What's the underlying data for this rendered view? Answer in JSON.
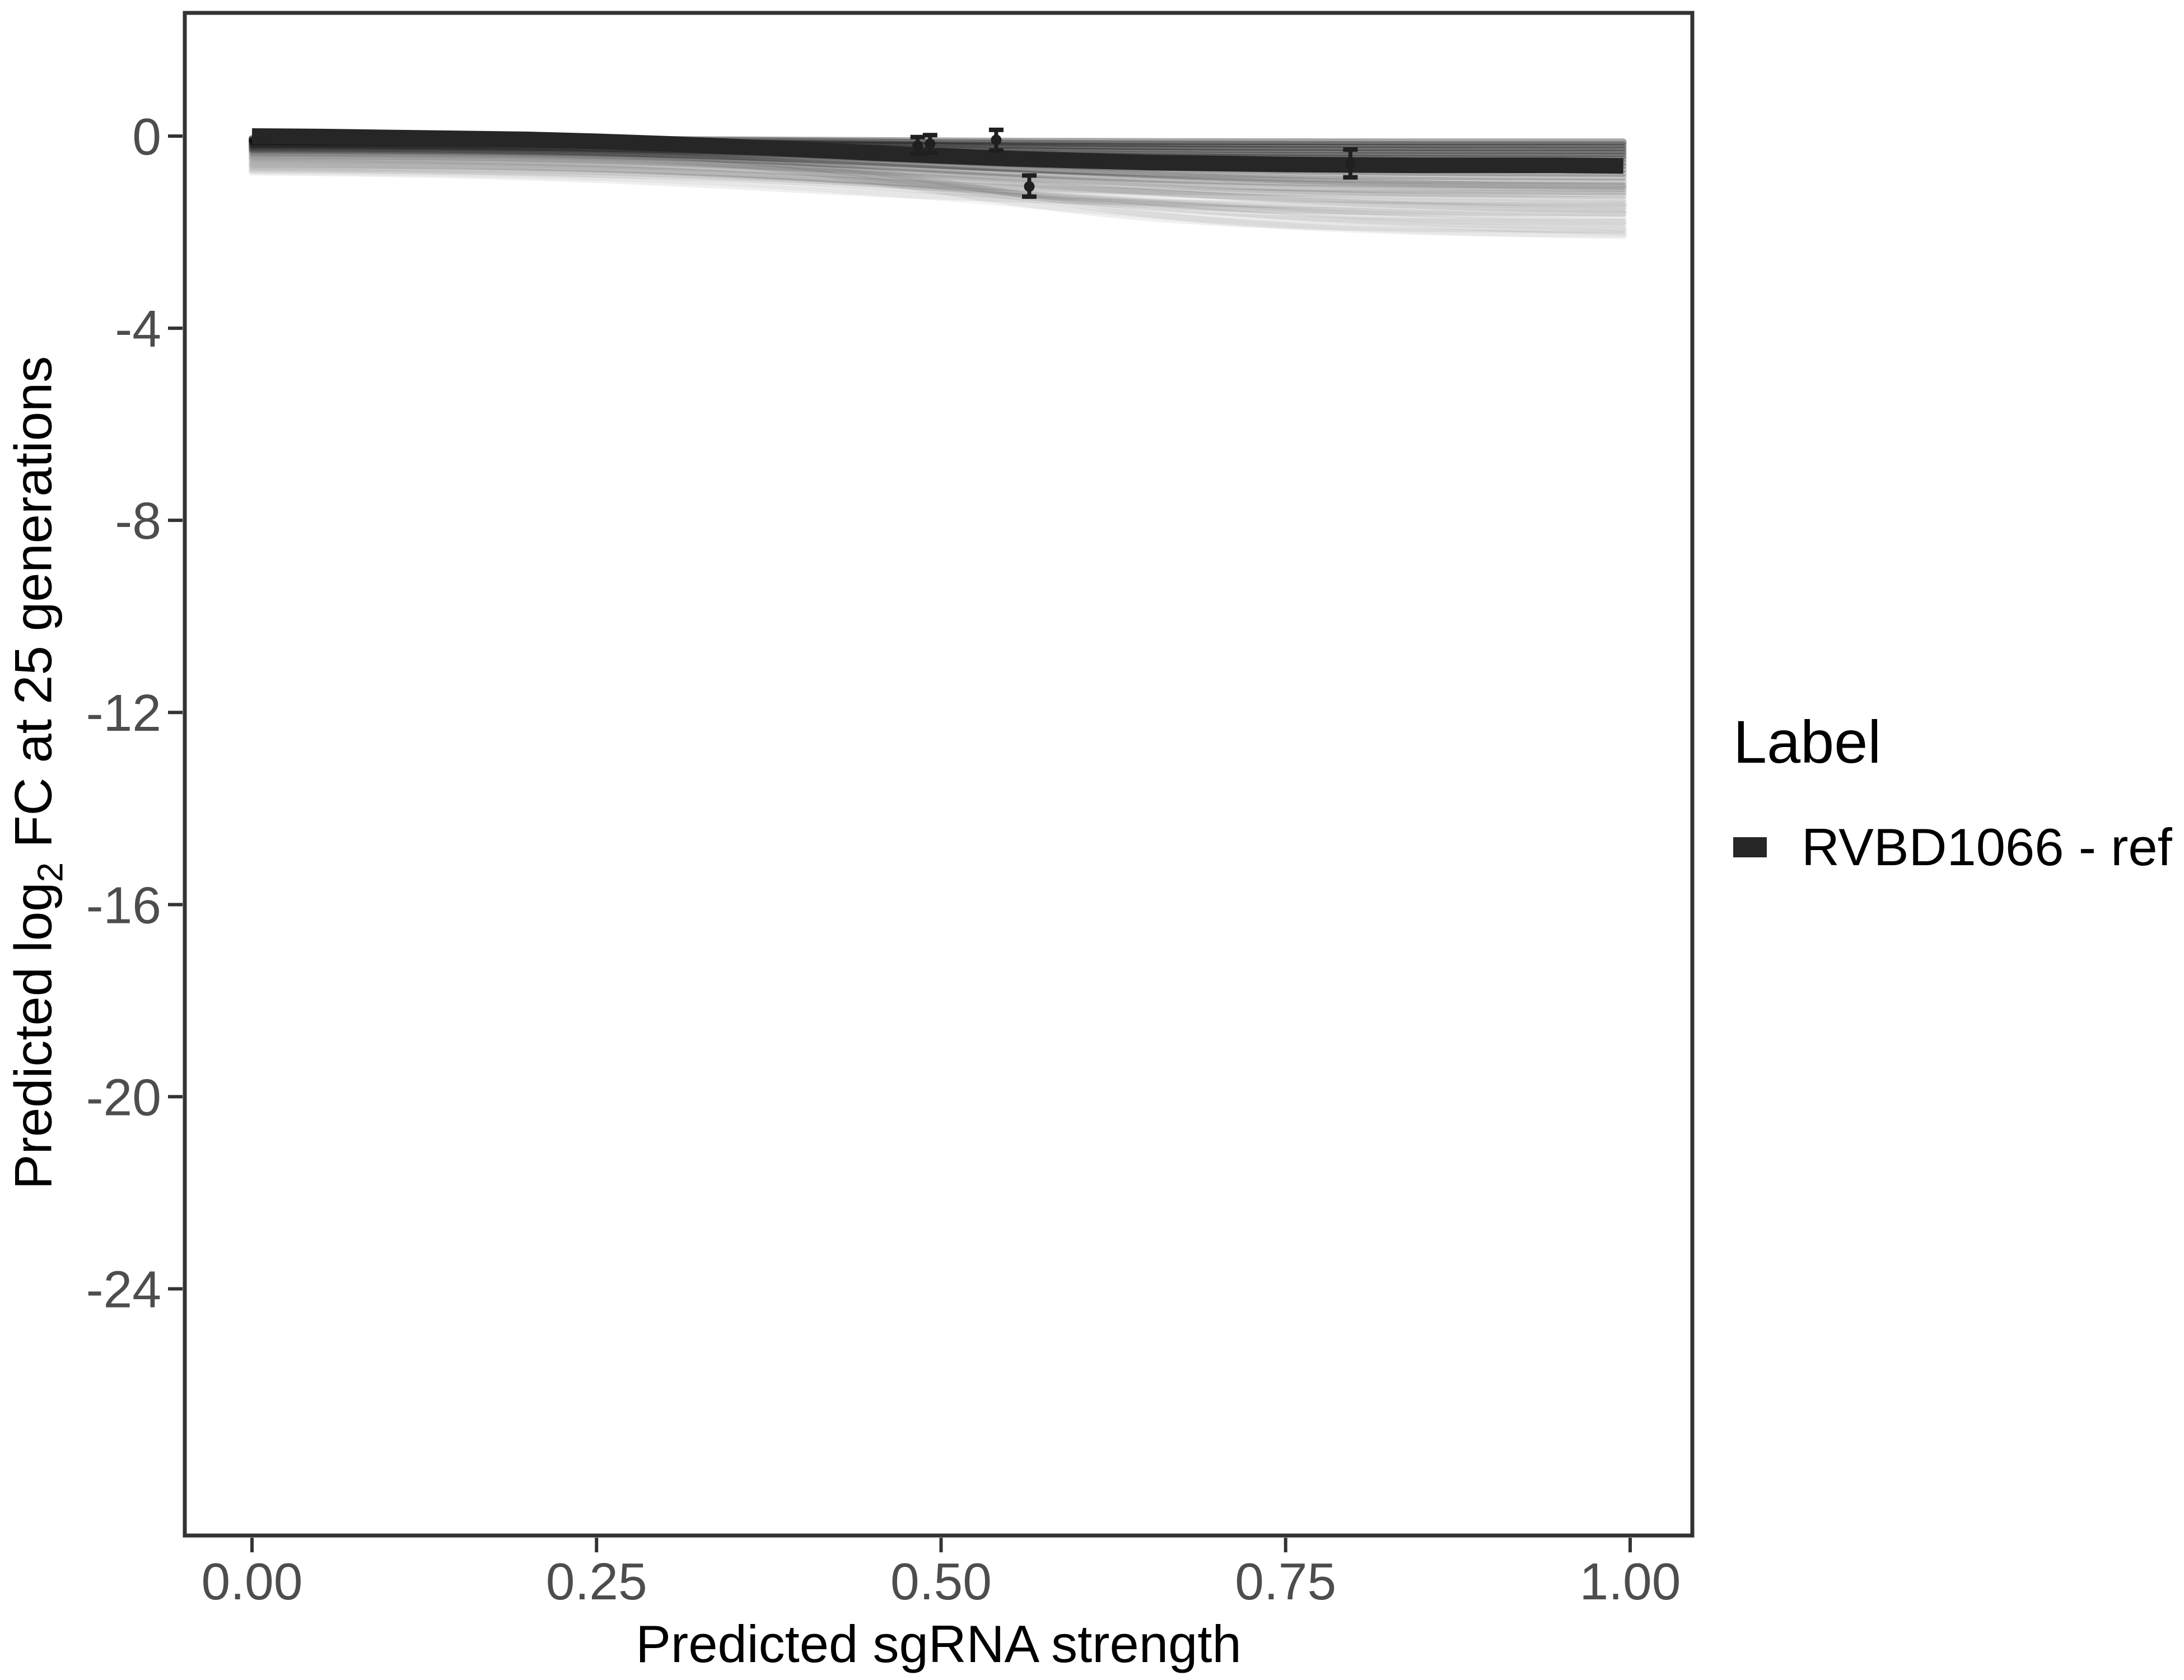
{
  "figure": {
    "background": "#ffffff"
  },
  "style_colors": {
    "panel_border": "#333333",
    "tick_mark": "#333333",
    "tick_label": "#4d4d4d",
    "axis_title": "#000000",
    "ref_line": "#262626",
    "point_and_errorbar": "#1f1f1f",
    "ensemble_line": "#000000"
  },
  "chart_data": {
    "type": "line",
    "title": "",
    "xlabel": "Predicted sgRNA strength",
    "ylabel_parts": {
      "pre": "Predicted  log",
      "sub": "2",
      "post": " FC at 25 generations"
    },
    "x_axis": {
      "tick_labels": [
        "0.00",
        "0.25",
        "0.50",
        "0.75",
        "1.00"
      ],
      "tick_values": [
        0,
        0.25,
        0.5,
        0.75,
        1.0
      ],
      "range": [
        -0.049,
        1.045
      ]
    },
    "y_axis": {
      "tick_labels": [
        "0",
        "-4",
        "-8",
        "-12",
        "-16",
        "-20",
        "-24"
      ],
      "tick_values": [
        0,
        -4,
        -8,
        -12,
        -16,
        -20,
        -24
      ],
      "range": [
        -29.1,
        2.6
      ]
    },
    "grid": "off",
    "legend_position": "right",
    "legend": {
      "title": "Label",
      "items": [
        {
          "label": "RVBD1066 - ref",
          "color": "#262626",
          "key": "thick-line"
        }
      ]
    },
    "ref_curve": {
      "label": "RVBD1066 - ref",
      "color": "#262626",
      "x": [
        0,
        0.05,
        0.1,
        0.15,
        0.2,
        0.25,
        0.3,
        0.35,
        0.4,
        0.45,
        0.5,
        0.55,
        0.6,
        0.65,
        0.7,
        0.75,
        0.8,
        0.85,
        0.9,
        0.95,
        0.995
      ],
      "y": [
        0.0,
        -0.01,
        -0.03,
        -0.05,
        -0.07,
        -0.11,
        -0.16,
        -0.22,
        -0.28,
        -0.35,
        -0.41,
        -0.47,
        -0.51,
        -0.55,
        -0.57,
        -0.59,
        -0.6,
        -0.61,
        -0.61,
        -0.61,
        -0.62
      ]
    },
    "points": [
      {
        "x": 0.483,
        "y": -0.2,
        "lo": -0.37,
        "hi": -0.02
      },
      {
        "x": 0.492,
        "y": -0.16,
        "lo": -0.35,
        "hi": 0.02
      },
      {
        "x": 0.54,
        "y": -0.08,
        "lo": -0.3,
        "hi": 0.13
      },
      {
        "x": 0.564,
        "y": -1.05,
        "lo": -1.26,
        "hi": -0.82
      },
      {
        "x": 0.797,
        "y": -0.57,
        "lo": -0.86,
        "hi": -0.28
      }
    ],
    "ensemble_lines": {
      "color": "#000000",
      "x_end": 0.995,
      "note": "faint posterior-sample curves; each entry is [y_at_x0, y_at_xend, logistic_midpoint, logistic_scale, opacity]",
      "lines": [
        [
          -0.05,
          -0.12,
          0.4,
          0.12,
          0.35
        ],
        [
          -0.06,
          -0.18,
          0.44,
          0.12,
          0.32
        ],
        [
          -0.08,
          -0.24,
          0.42,
          0.12,
          0.34
        ],
        [
          -0.09,
          -0.3,
          0.46,
          0.13,
          0.3
        ],
        [
          -0.11,
          -0.36,
          0.43,
          0.12,
          0.32
        ],
        [
          -0.12,
          -0.42,
          0.4,
          0.12,
          0.3
        ],
        [
          -0.14,
          -0.48,
          0.45,
          0.13,
          0.28
        ],
        [
          -0.16,
          -0.55,
          0.47,
          0.12,
          0.26
        ],
        [
          -0.18,
          -0.62,
          0.44,
          0.13,
          0.28
        ],
        [
          -0.2,
          -0.7,
          0.46,
          0.12,
          0.25
        ],
        [
          -0.22,
          -0.78,
          0.48,
          0.13,
          0.22
        ],
        [
          -0.25,
          -0.86,
          0.45,
          0.12,
          0.2
        ],
        [
          -0.28,
          -0.95,
          0.5,
          0.13,
          0.16
        ],
        [
          -0.3,
          -1.02,
          0.47,
          0.12,
          0.15
        ],
        [
          -0.33,
          -1.1,
          0.52,
          0.14,
          0.14
        ],
        [
          -0.36,
          -1.16,
          0.49,
          0.13,
          0.13
        ],
        [
          -0.27,
          -1.05,
          0.55,
          0.15,
          0.12
        ],
        [
          -0.4,
          -1.25,
          0.52,
          0.14,
          0.1
        ],
        [
          -0.44,
          -1.33,
          0.55,
          0.15,
          0.09
        ],
        [
          -0.48,
          -1.4,
          0.5,
          0.14,
          0.09
        ],
        [
          -0.52,
          -1.48,
          0.56,
          0.15,
          0.08
        ],
        [
          -0.46,
          -1.55,
          0.58,
          0.16,
          0.08
        ],
        [
          -0.55,
          -1.62,
          0.53,
          0.15,
          0.07
        ],
        [
          -0.58,
          -1.7,
          0.55,
          0.15,
          0.06
        ],
        [
          -0.62,
          -1.78,
          0.57,
          0.16,
          0.06
        ],
        [
          -0.65,
          -1.85,
          0.6,
          0.16,
          0.05
        ],
        [
          -0.68,
          -1.92,
          0.58,
          0.15,
          0.05
        ],
        [
          -0.7,
          -2.0,
          0.62,
          0.16,
          0.05
        ],
        [
          -0.73,
          -2.08,
          0.56,
          0.15,
          0.04
        ],
        [
          -0.35,
          -1.95,
          0.5,
          0.09,
          0.06
        ],
        [
          -0.3,
          -1.8,
          0.52,
          0.08,
          0.06
        ],
        [
          -0.42,
          -2.05,
          0.55,
          0.1,
          0.05
        ],
        [
          -0.25,
          -1.6,
          0.48,
          0.09,
          0.07
        ],
        [
          -0.6,
          -1.2,
          0.42,
          0.1,
          0.08
        ],
        [
          -0.75,
          -1.45,
          0.38,
          0.12,
          0.06
        ]
      ]
    }
  }
}
